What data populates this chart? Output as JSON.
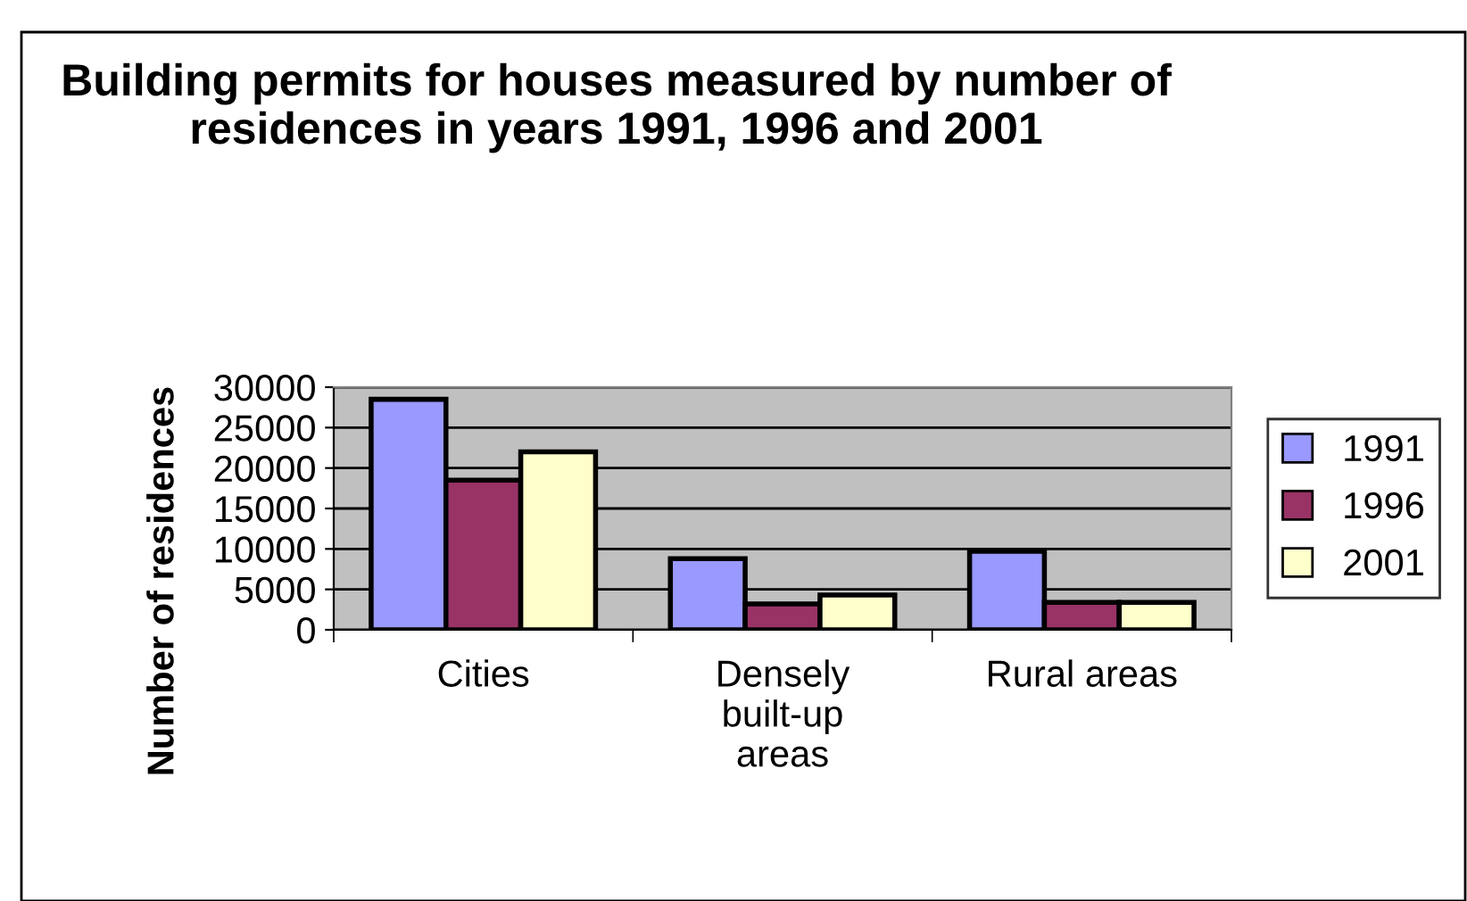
{
  "chart_data": {
    "type": "bar",
    "title": "Building permits for houses measured by number of residences in years 1991, 1996 and 2001",
    "ylabel": "Number of residences",
    "categories": [
      "Cities",
      "Densely\nbuilt-up\nareas",
      "Rural areas"
    ],
    "series": [
      {
        "name": "1991",
        "color": "#9999ff",
        "values": [
          28500,
          8800,
          9700
        ]
      },
      {
        "name": "1996",
        "color": "#993366",
        "values": [
          18500,
          3200,
          3400
        ]
      },
      {
        "name": "2001",
        "color": "#ffffcc",
        "values": [
          22000,
          4300,
          3400
        ]
      }
    ],
    "ylim": [
      0,
      30000
    ],
    "yticks": [
      0,
      5000,
      10000,
      15000,
      20000,
      25000,
      30000
    ],
    "grid": "y",
    "legend": "right"
  }
}
